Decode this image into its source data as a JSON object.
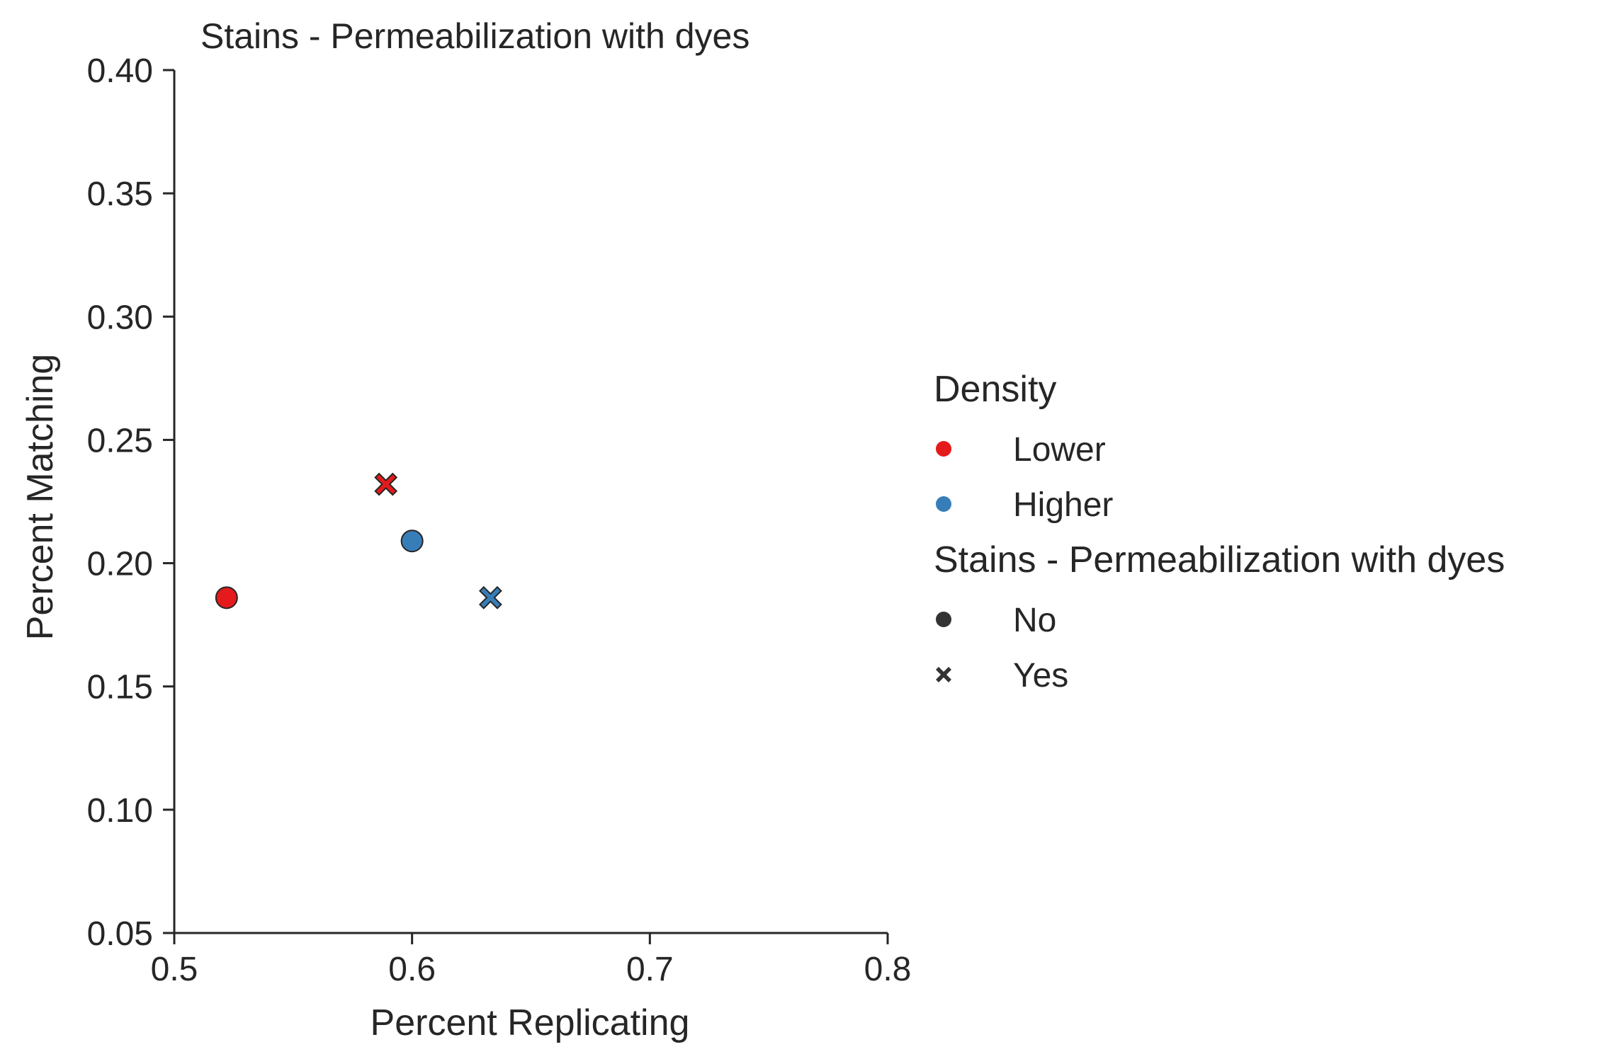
{
  "chart_data": {
    "type": "scatter",
    "title": "Stains - Permeabilization with dyes",
    "xlabel": "Percent Replicating",
    "ylabel": "Percent Matching",
    "xlim": [
      0.5,
      0.8
    ],
    "ylim": [
      0.05,
      0.4
    ],
    "xticks": [
      0.5,
      0.6,
      0.7,
      0.8
    ],
    "xtick_labels": [
      "0.5",
      "0.6",
      "0.7",
      "0.8"
    ],
    "yticks": [
      0.05,
      0.1,
      0.15,
      0.2,
      0.25,
      0.3,
      0.35,
      0.4
    ],
    "ytick_labels": [
      "0.05",
      "0.10",
      "0.15",
      "0.20",
      "0.25",
      "0.30",
      "0.35",
      "0.40"
    ],
    "grid": false,
    "legend_placement": "right",
    "legend": {
      "hue_title": "Density",
      "hue": [
        {
          "label": "Lower",
          "color": "#e41a1c"
        },
        {
          "label": "Higher",
          "color": "#377eb8"
        }
      ],
      "style_title": "Stains - Permeabilization with dyes",
      "style": [
        {
          "label": "No",
          "marker": "circle"
        },
        {
          "label": "Yes",
          "marker": "x"
        }
      ]
    },
    "points": [
      {
        "x": 0.522,
        "y": 0.186,
        "density": "Lower",
        "stain": "No"
      },
      {
        "x": 0.589,
        "y": 0.232,
        "density": "Lower",
        "stain": "Yes"
      },
      {
        "x": 0.6,
        "y": 0.209,
        "density": "Higher",
        "stain": "No"
      },
      {
        "x": 0.633,
        "y": 0.186,
        "density": "Higher",
        "stain": "Yes"
      }
    ]
  }
}
